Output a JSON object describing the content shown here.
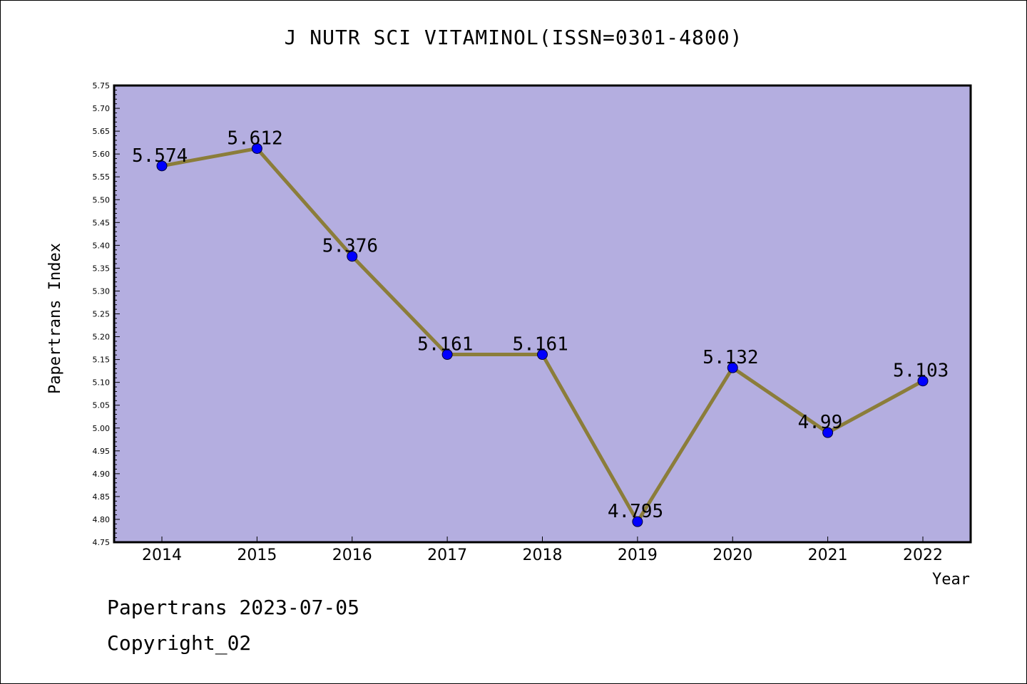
{
  "title": "J NUTR SCI VITAMINOL(ISSN=0301-4800)",
  "footer": {
    "line1": "Papertrans 2023-07-05",
    "line2": "Copyright_02"
  },
  "chart_data": {
    "type": "line",
    "x": [
      "2014",
      "2015",
      "2016",
      "2017",
      "2018",
      "2019",
      "2020",
      "2021",
      "2022"
    ],
    "series": [
      {
        "values": [
          5.574,
          5.612,
          5.376,
          5.161,
          5.161,
          4.795,
          5.132,
          4.99,
          5.103
        ],
        "labels": [
          "5.574",
          "5.612",
          "5.376",
          "5.161",
          "5.161",
          "4.795",
          "5.132",
          "4.99",
          "5.103"
        ],
        "line_color": "#8b7d3a",
        "marker_color": "#0000ff"
      }
    ],
    "xlabel": "Year",
    "ylabel": "Papertrans Index",
    "ylim": [
      4.75,
      5.75
    ],
    "ytick_step": 0.05,
    "plot_background": "#b4aee0",
    "grid": false,
    "legend": "none"
  }
}
